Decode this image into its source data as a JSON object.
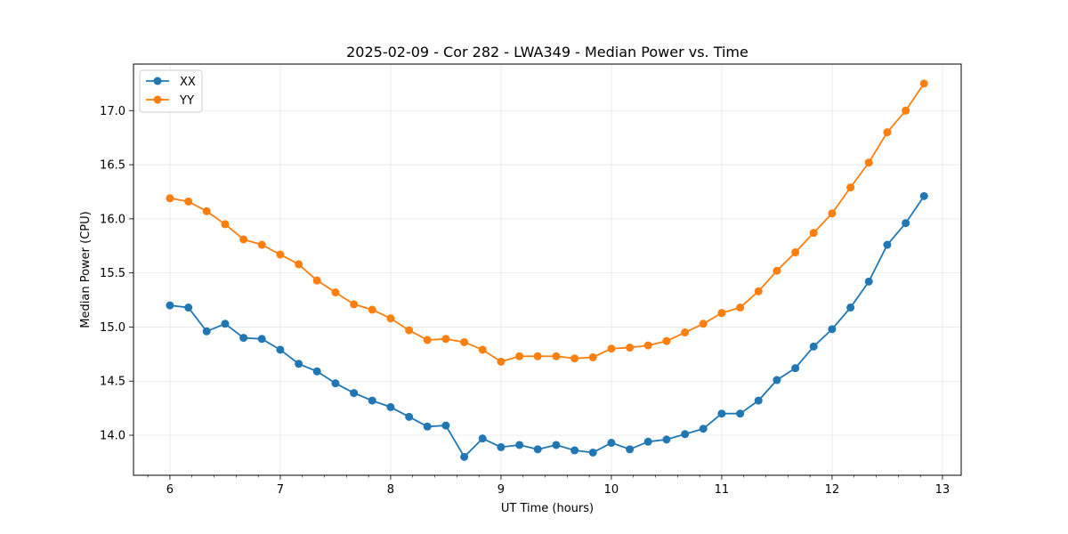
{
  "chart_data": {
    "type": "line",
    "title": "2025-02-09 - Cor 282 - LWA349 - Median Power vs. Time",
    "xlabel": "UT Time (hours)",
    "ylabel": "Median Power (CPU)",
    "xlim": [
      5.67,
      13.17
    ],
    "ylim": [
      13.63,
      17.43
    ],
    "xticks": [
      6,
      7,
      8,
      9,
      10,
      11,
      12,
      13
    ],
    "xtick_labels": [
      "6",
      "7",
      "8",
      "9",
      "10",
      "11",
      "12",
      "13"
    ],
    "yticks": [
      14.0,
      14.5,
      15.0,
      15.5,
      16.0,
      16.5,
      17.0
    ],
    "ytick_labels": [
      "14.0",
      "14.5",
      "15.0",
      "15.5",
      "16.0",
      "16.5",
      "17.0"
    ],
    "grid": true,
    "legend_position": "top-left",
    "x": [
      6.0,
      6.167,
      6.333,
      6.5,
      6.667,
      6.833,
      7.0,
      7.167,
      7.333,
      7.5,
      7.667,
      7.833,
      8.0,
      8.167,
      8.333,
      8.5,
      8.667,
      8.833,
      9.0,
      9.167,
      9.333,
      9.5,
      9.667,
      9.833,
      10.0,
      10.167,
      10.333,
      10.5,
      10.667,
      10.833,
      11.0,
      11.167,
      11.333,
      11.5,
      11.667,
      11.833,
      12.0,
      12.167,
      12.333,
      12.5,
      12.667,
      12.833
    ],
    "series": [
      {
        "name": "XX",
        "color": "#1f77b4",
        "values": [
          15.2,
          15.18,
          14.96,
          15.03,
          14.9,
          14.89,
          14.79,
          14.66,
          14.59,
          14.48,
          14.39,
          14.32,
          14.26,
          14.17,
          14.08,
          14.09,
          13.8,
          13.97,
          13.89,
          13.91,
          13.87,
          13.91,
          13.86,
          13.84,
          13.93,
          13.87,
          13.94,
          13.96,
          14.01,
          14.06,
          14.2,
          14.2,
          14.32,
          14.51,
          14.62,
          14.82,
          14.98,
          15.18,
          15.42,
          15.76,
          15.96,
          16.21
        ]
      },
      {
        "name": "YY",
        "color": "#ff7f0e",
        "values": [
          16.19,
          16.16,
          16.07,
          15.95,
          15.81,
          15.76,
          15.67,
          15.58,
          15.43,
          15.32,
          15.21,
          15.16,
          15.08,
          14.97,
          14.88,
          14.89,
          14.86,
          14.79,
          14.68,
          14.73,
          14.73,
          14.73,
          14.71,
          14.72,
          14.8,
          14.81,
          14.83,
          14.87,
          14.95,
          15.03,
          15.13,
          15.18,
          15.33,
          15.52,
          15.69,
          15.87,
          16.05,
          16.29,
          16.52,
          16.8,
          17.0,
          17.25
        ]
      }
    ]
  }
}
